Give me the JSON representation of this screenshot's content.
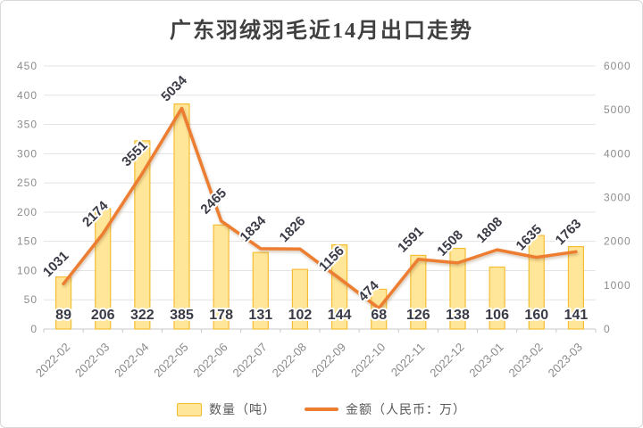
{
  "chart_data": {
    "type": "bar",
    "title": "广东羽绒羽毛近14月出口走势",
    "categories": [
      "2022-02",
      "2022-03",
      "2022-04",
      "2022-05",
      "2022-06",
      "2022-07",
      "2022-08",
      "2022-09",
      "2022-10",
      "2022-11",
      "2022-12",
      "2023-01",
      "2023-02",
      "2023-03"
    ],
    "series": [
      {
        "name": "数量（吨）",
        "type": "bar",
        "axis": "left",
        "values": [
          89,
          206,
          322,
          385,
          178,
          131,
          102,
          144,
          68,
          126,
          138,
          106,
          160,
          141
        ]
      },
      {
        "name": "金额（人民币：万）",
        "type": "line",
        "axis": "right",
        "values": [
          1031,
          2174,
          3551,
          5034,
          2465,
          1834,
          1826,
          1156,
          474,
          1591,
          1508,
          1808,
          1635,
          1763
        ]
      }
    ],
    "left_axis": {
      "min": 0,
      "max": 450,
      "step": 50
    },
    "right_axis": {
      "min": 0,
      "max": 6000,
      "step": 1000
    },
    "grid": true,
    "legend_position": "bottom"
  },
  "colors": {
    "bar_fill": "#FFE699",
    "bar_border": "#F5BD33",
    "line": "#ED7D31",
    "data_label": "#3B3B46",
    "axis_label": "#8C8C8C",
    "x_label": "#8A8A8A",
    "grid": "#E3E3E3",
    "axis_line": "#C9C9C9",
    "title": "#404040",
    "legend_text": "#595959",
    "frame_border": "#D9D9D9"
  }
}
